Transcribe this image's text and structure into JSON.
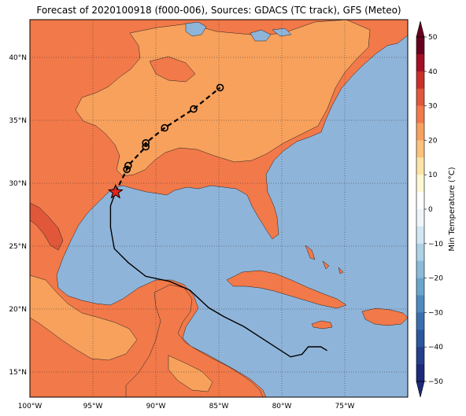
{
  "title": "Forecast of 2020100918 (f000-006), Sources: GDACS (TC track), GFS (Meteo)",
  "map": {
    "lon_ticks": [
      "100°W",
      "95°W",
      "90°W",
      "85°W",
      "80°W",
      "75°W"
    ],
    "lat_ticks": [
      "40°N",
      "35°N",
      "30°N",
      "25°N",
      "20°N",
      "15°N"
    ],
    "lon_values": [
      -100,
      -95,
      -90,
      -85,
      -80,
      -75
    ],
    "lat_values": [
      40,
      35,
      30,
      25,
      20,
      15
    ],
    "extent": {
      "lon_min": -100,
      "lon_max": -70,
      "lat_min": 13,
      "lat_max": 43
    },
    "gridlines": true
  },
  "colorbar": {
    "label": "Min Temperature (°C)",
    "ticks": [
      "50",
      "40",
      "30",
      "20",
      "10",
      "0",
      "−10",
      "−20",
      "−30",
      "−40",
      "−50"
    ],
    "bins": [
      {
        "from": 45,
        "to": 50,
        "color": "#67001f"
      },
      {
        "from": 40,
        "to": 45,
        "color": "#a50f23"
      },
      {
        "from": 35,
        "to": 40,
        "color": "#c9302a"
      },
      {
        "from": 30,
        "to": 35,
        "color": "#e0573a"
      },
      {
        "from": 25,
        "to": 30,
        "color": "#f27949"
      },
      {
        "from": 20,
        "to": 25,
        "color": "#f7a15c"
      },
      {
        "from": 15,
        "to": 20,
        "color": "#fcc17c"
      },
      {
        "from": 10,
        "to": 15,
        "color": "#fde3a4"
      },
      {
        "from": 5,
        "to": 10,
        "color": "#fff6d3"
      },
      {
        "from": 0,
        "to": 5,
        "color": "#fdfdfd"
      },
      {
        "from": -5,
        "to": 0,
        "color": "#eef6fb"
      },
      {
        "from": -10,
        "to": -5,
        "color": "#d1e7f2"
      },
      {
        "from": -15,
        "to": -10,
        "color": "#aed2e6"
      },
      {
        "from": -20,
        "to": -15,
        "color": "#8bbbd9"
      },
      {
        "from": -25,
        "to": -20,
        "color": "#6aa5cc"
      },
      {
        "from": -30,
        "to": -25,
        "color": "#4d8abf"
      },
      {
        "from": -35,
        "to": -30,
        "color": "#3a6faf"
      },
      {
        "from": -40,
        "to": -35,
        "color": "#2b579d"
      },
      {
        "from": -45,
        "to": -40,
        "color": "#253f8d"
      },
      {
        "from": -50,
        "to": -45,
        "color": "#1d2a7a"
      }
    ]
  },
  "colors": {
    "ocean": "#8fb4d9",
    "temp_25_30": "#f27949",
    "temp_20_25": "#f7a15c",
    "temp_15_20": "#fcc17c",
    "temp_30_35": "#e0573a",
    "temp_35_40": "#c9302a",
    "track": "#000000",
    "storm_marker": "#e8231e"
  },
  "track": {
    "storm_position": {
      "lon": -93.2,
      "lat": 29.3
    },
    "forecast_points": [
      {
        "lon": -92.3,
        "lat": 31.1
      },
      {
        "lon": -92.2,
        "lat": 31.4
      },
      {
        "lon": -90.8,
        "lat": 32.9
      },
      {
        "lon": -90.8,
        "lat": 33.2
      },
      {
        "lon": -89.3,
        "lat": 34.4
      },
      {
        "lon": -87.0,
        "lat": 35.9
      },
      {
        "lon": -84.9,
        "lat": 37.6
      }
    ],
    "past_track": [
      {
        "lon": -93.2,
        "lat": 29.3
      },
      {
        "lon": -93.6,
        "lat": 28.2
      },
      {
        "lon": -93.6,
        "lat": 26.5
      },
      {
        "lon": -93.3,
        "lat": 24.8
      },
      {
        "lon": -92.2,
        "lat": 23.7
      },
      {
        "lon": -90.8,
        "lat": 22.6
      },
      {
        "lon": -88.9,
        "lat": 22.2
      },
      {
        "lon": -87.3,
        "lat": 21.5
      },
      {
        "lon": -85.8,
        "lat": 20.1
      },
      {
        "lon": -84.6,
        "lat": 19.4
      },
      {
        "lon": -83.0,
        "lat": 18.6
      },
      {
        "lon": -81.0,
        "lat": 17.3
      },
      {
        "lon": -79.3,
        "lat": 16.2
      },
      {
        "lon": -78.4,
        "lat": 16.4
      },
      {
        "lon": -77.9,
        "lat": 17.0
      },
      {
        "lon": -76.9,
        "lat": 17.0
      },
      {
        "lon": -76.4,
        "lat": 16.7
      }
    ]
  }
}
